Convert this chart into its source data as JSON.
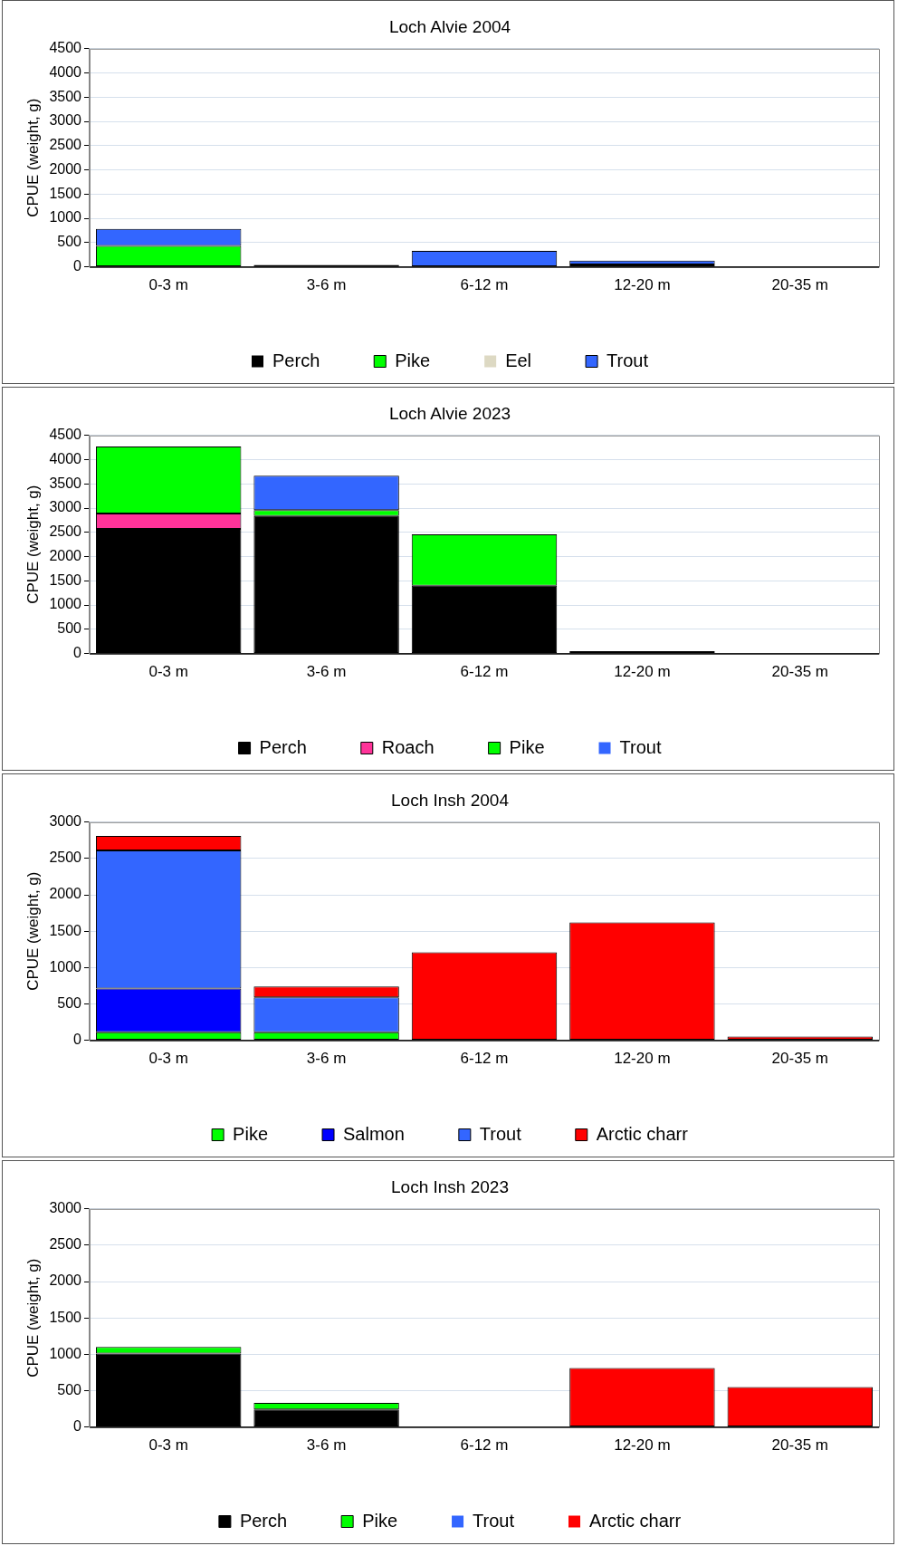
{
  "chart_data": [
    {
      "type": "bar",
      "title": "Loch Alvie 2004",
      "ylabel": "CPUE (weight, g)",
      "categories": [
        "0-3 m",
        "3-6 m",
        "6-12 m",
        "12-20 m",
        "20-35 m"
      ],
      "stacked": true,
      "ylim": [
        0,
        4500
      ],
      "yticks": [
        0,
        500,
        1000,
        1500,
        2000,
        2500,
        3000,
        3500,
        4000,
        4500
      ],
      "grid": "y",
      "legend": "bottom",
      "series": [
        {
          "name": "Perch",
          "color": "#000000",
          "values": [
            0,
            40,
            0,
            50,
            0
          ]
        },
        {
          "name": "Pike",
          "color": "#00ff00",
          "values": [
            430,
            0,
            0,
            0,
            0
          ]
        },
        {
          "name": "Eel",
          "color": "#ddd9c3",
          "values": [
            0,
            0,
            0,
            0,
            0
          ]
        },
        {
          "name": "Trout",
          "color": "#3366ff",
          "values": [
            350,
            0,
            330,
            80,
            0
          ]
        }
      ]
    },
    {
      "type": "bar",
      "title": "Loch Alvie 2023",
      "ylabel": "CPUE (weight, g)",
      "categories": [
        "0-3 m",
        "3-6 m",
        "6-12 m",
        "12-20 m",
        "20-35 m"
      ],
      "stacked": true,
      "ylim": [
        0,
        4500
      ],
      "yticks": [
        0,
        500,
        1000,
        1500,
        2000,
        2500,
        3000,
        3500,
        4000,
        4500
      ],
      "grid": "y",
      "legend": "bottom",
      "series": [
        {
          "name": "Perch",
          "color": "#000000",
          "values": [
            2570,
            2840,
            1400,
            50,
            0
          ]
        },
        {
          "name": "Roach",
          "color": "#ff3399",
          "values": [
            320,
            0,
            0,
            0,
            0
          ]
        },
        {
          "name": "Pike",
          "color": "#00ff00",
          "values": [
            1380,
            120,
            1060,
            0,
            0
          ]
        },
        {
          "name": "Trout",
          "color": "#3366ff",
          "values": [
            0,
            710,
            0,
            0,
            0
          ]
        }
      ]
    },
    {
      "type": "bar",
      "title": "Loch Insh 2004",
      "ylabel": "CPUE (weight, g)",
      "categories": [
        "0-3 m",
        "3-6 m",
        "6-12 m",
        "12-20 m",
        "20-35 m"
      ],
      "stacked": true,
      "ylim": [
        0,
        3000
      ],
      "yticks": [
        0,
        500,
        1000,
        1500,
        2000,
        2500,
        3000
      ],
      "grid": "y",
      "legend": "bottom",
      "series": [
        {
          "name": "Pike",
          "color": "#00ff00",
          "values": [
            110,
            110,
            0,
            0,
            0
          ]
        },
        {
          "name": "Salmon",
          "color": "#0000ff",
          "values": [
            600,
            0,
            0,
            0,
            0
          ]
        },
        {
          "name": "Trout",
          "color": "#3366ff",
          "values": [
            1900,
            480,
            0,
            0,
            0
          ]
        },
        {
          "name": "Arctic charr",
          "color": "#ff0000",
          "values": [
            200,
            150,
            1210,
            1620,
            50
          ]
        }
      ]
    },
    {
      "type": "bar",
      "title": "Loch Insh 2023",
      "ylabel": "CPUE (weight, g)",
      "categories": [
        "0-3 m",
        "3-6 m",
        "6-12 m",
        "12-20 m",
        "20-35 m"
      ],
      "stacked": true,
      "ylim": [
        0,
        3000
      ],
      "yticks": [
        0,
        500,
        1000,
        1500,
        2000,
        2500,
        3000
      ],
      "grid": "y",
      "legend": "bottom",
      "series": [
        {
          "name": "Perch",
          "color": "#000000",
          "values": [
            1010,
            240,
            0,
            0,
            0
          ]
        },
        {
          "name": "Pike",
          "color": "#00ff00",
          "values": [
            90,
            90,
            0,
            0,
            0
          ]
        },
        {
          "name": "Trout",
          "color": "#3366ff",
          "values": [
            0,
            0,
            0,
            0,
            0
          ]
        },
        {
          "name": "Arctic charr",
          "color": "#ff0000",
          "values": [
            0,
            0,
            0,
            810,
            550
          ]
        }
      ]
    }
  ]
}
